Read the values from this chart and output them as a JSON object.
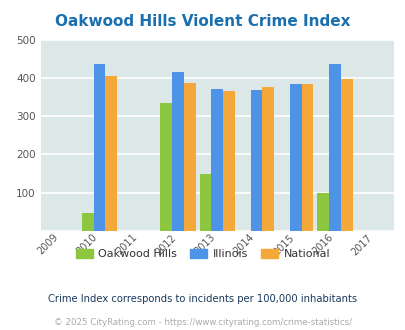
{
  "title": "Oakwood Hills Violent Crime Index",
  "title_color": "#1a6faf",
  "years": [
    2009,
    2010,
    2011,
    2012,
    2013,
    2014,
    2015,
    2016,
    2017
  ],
  "data_years": [
    2010,
    2012,
    2013,
    2014,
    2015,
    2016
  ],
  "oakwood_hills": [
    47,
    335,
    148,
    0,
    0,
    100
  ],
  "illinois": [
    435,
    416,
    372,
    368,
    383,
    437
  ],
  "national": [
    406,
    387,
    367,
    377,
    383,
    397
  ],
  "color_oakwood": "#8dc63f",
  "color_illinois": "#4d94e8",
  "color_national": "#f5a83a",
  "bg_color": "#dce8e8",
  "ylim": [
    0,
    500
  ],
  "yticks": [
    0,
    100,
    200,
    300,
    400,
    500
  ],
  "footnote": "Crime Index corresponds to incidents per 100,000 inhabitants",
  "footnote2": "© 2025 CityRating.com - https://www.cityrating.com/crime-statistics/",
  "footnote_color": "#1a3a5c",
  "footnote2_color": "#aaaaaa"
}
